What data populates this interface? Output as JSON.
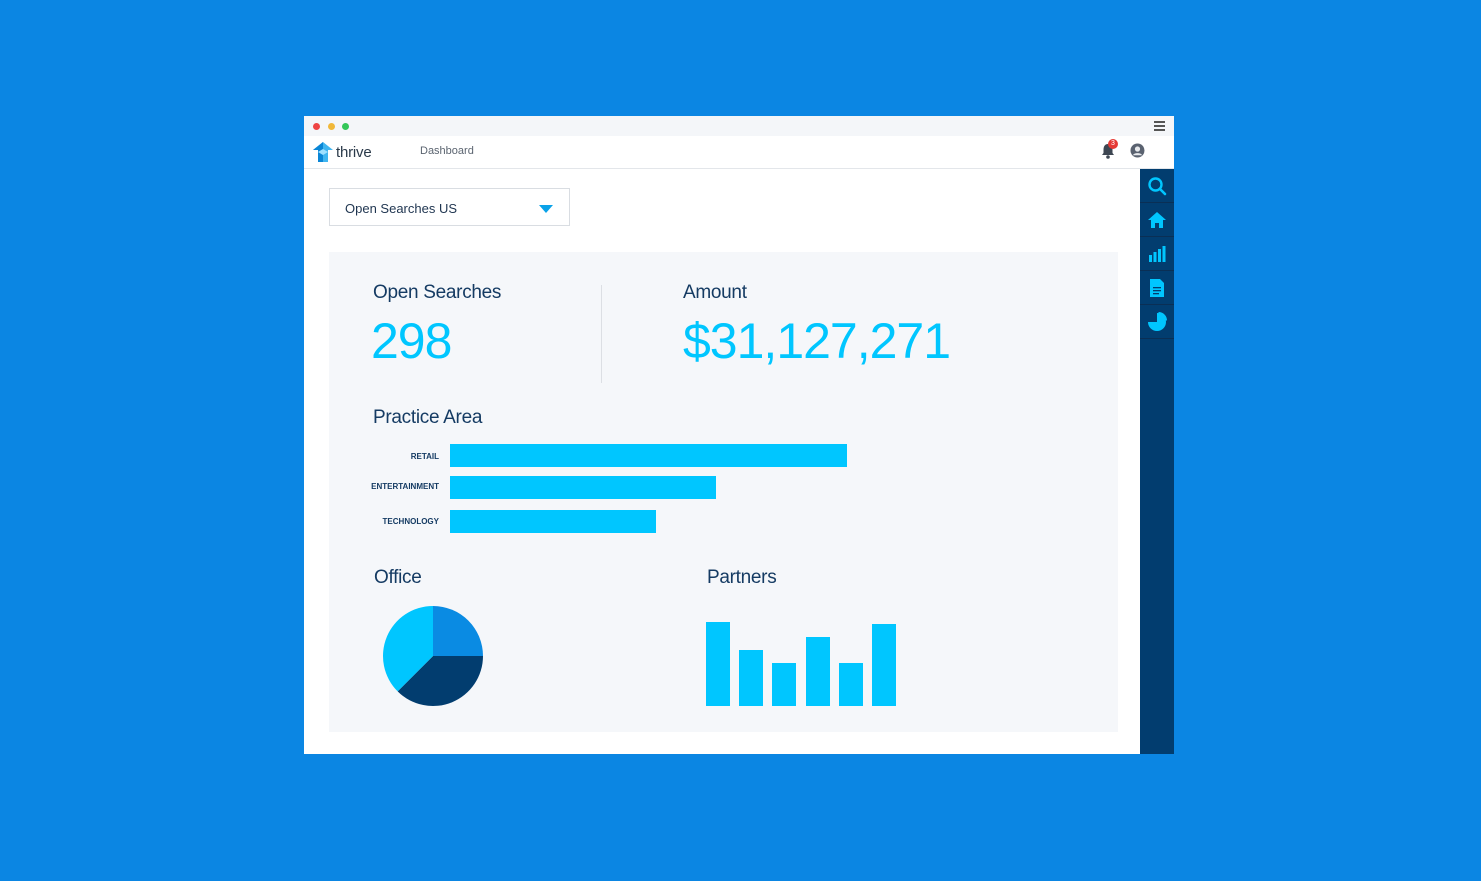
{
  "app": {
    "name": "thrive",
    "nav_item": "Dashboard",
    "notification_count": "3"
  },
  "filter": {
    "selected": "Open Searches US"
  },
  "stats": {
    "open_searches_label": "Open Searches",
    "open_searches_value": "298",
    "amount_label": "Amount",
    "amount_value": "$31,127,271"
  },
  "practice_area": {
    "title": "Practice Area"
  },
  "office": {
    "title": "Office"
  },
  "partners": {
    "title": "Partners"
  },
  "sidebar": {
    "icons": [
      "search-icon",
      "home-icon",
      "bar-chart-icon",
      "document-icon",
      "pie-chart-icon"
    ]
  },
  "colors": {
    "background": "#0b86e3",
    "accent": "#00c6ff",
    "navy": "#023d6f",
    "text": "#153b63"
  },
  "chart_data": [
    {
      "type": "bar",
      "orientation": "horizontal",
      "title": "Practice Area",
      "categories": [
        "RETAIL",
        "ENTERTAINMENT",
        "TECHNOLOGY"
      ],
      "values": [
        100,
        67,
        52
      ]
    },
    {
      "type": "pie",
      "title": "Office",
      "values": [
        25,
        37.5,
        37.5
      ],
      "colors": [
        "#0a8be3",
        "#023d6f",
        "#00c6ff"
      ]
    },
    {
      "type": "bar",
      "title": "Partners",
      "values": [
        84,
        56,
        43,
        69,
        43,
        82
      ]
    }
  ]
}
